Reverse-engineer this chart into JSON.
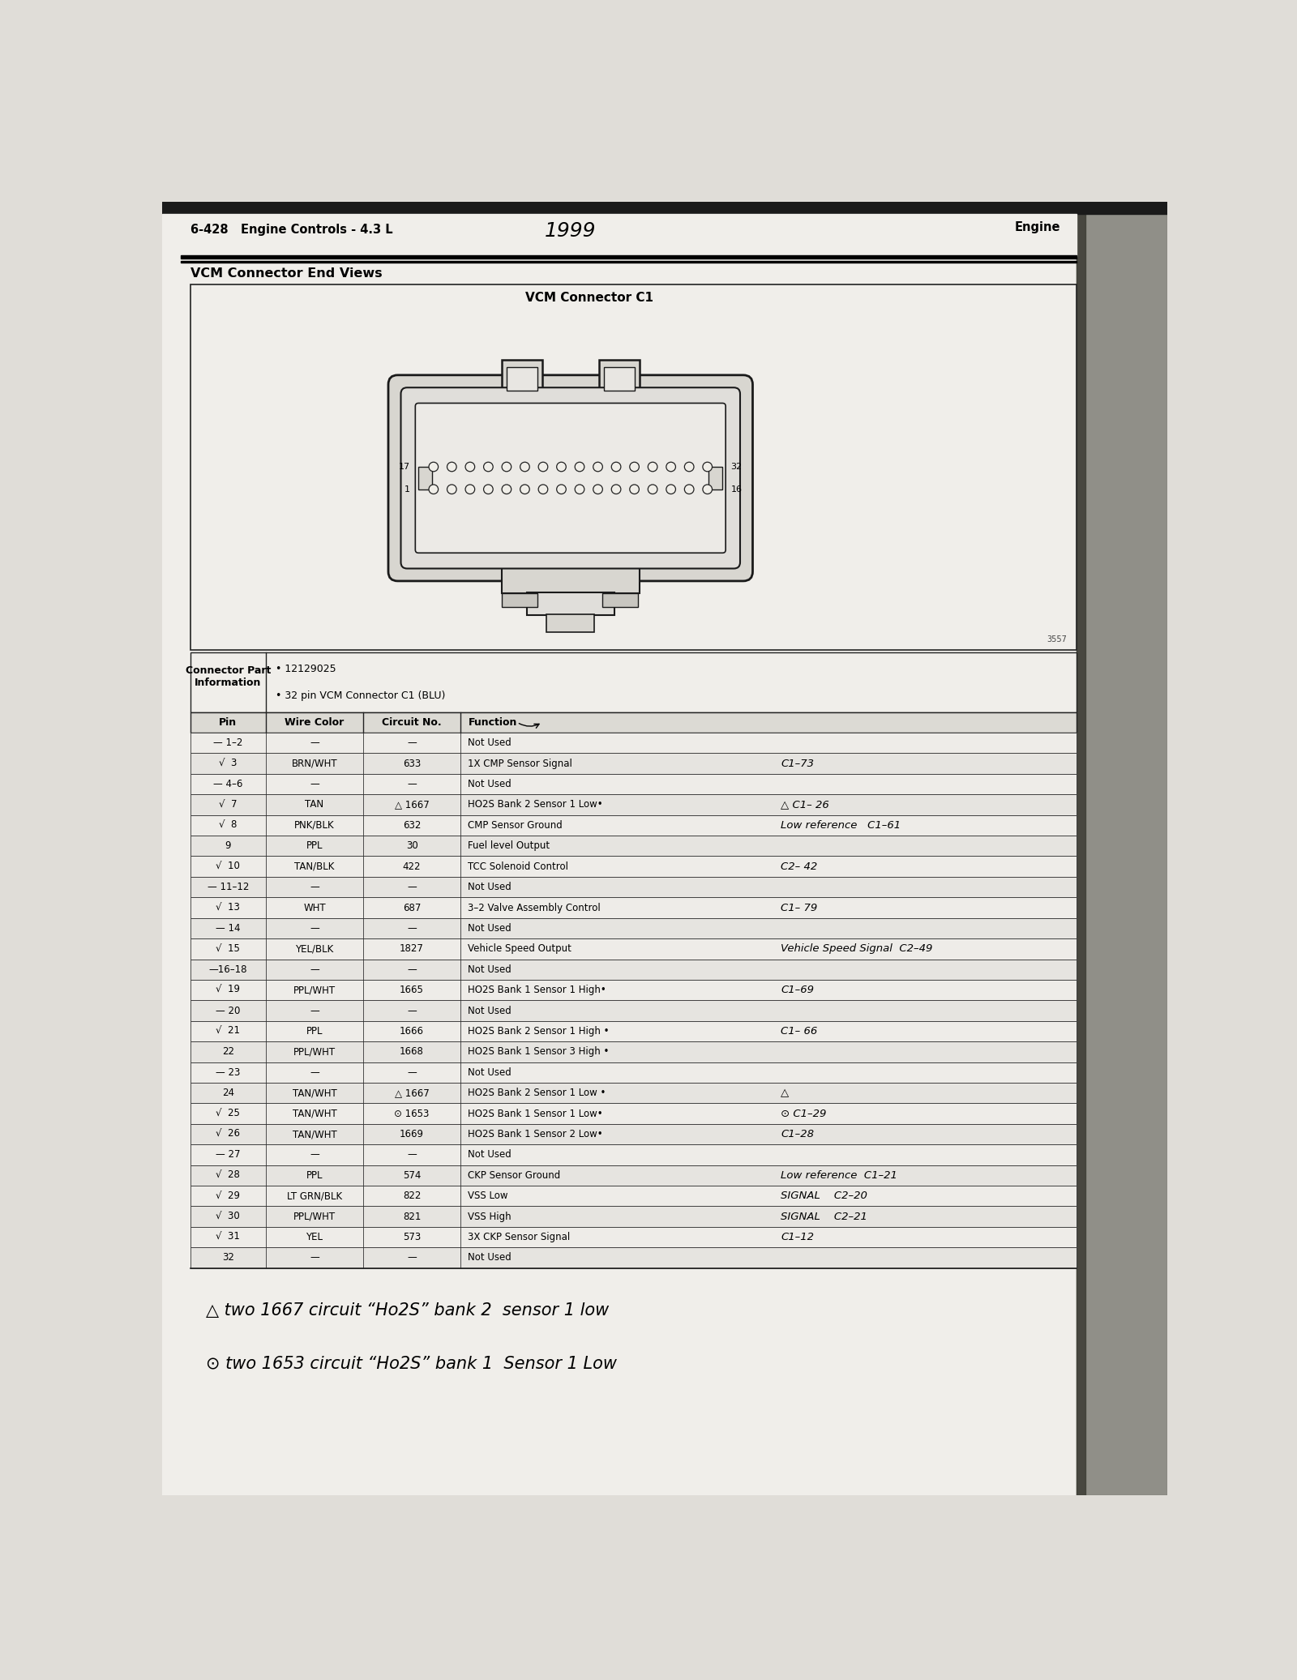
{
  "page_header_left": "6-428   Engine Controls - 4.3 L",
  "page_header_center": "1999",
  "page_header_right": "Engine",
  "section_title": "VCM Connector End Views",
  "connector_title": "VCM Connector C1",
  "part_info_label": "Connector Part\nInformation",
  "part_info_bullets": [
    "• 12129025",
    "• 32 pin VCM Connector C1 (BLU)"
  ],
  "table_headers": [
    "Pin",
    "Wire Color",
    "Circuit No.",
    "Function"
  ],
  "rows": [
    {
      "pin": "— 1–2",
      "wire": "—",
      "circuit": "—",
      "function": "Not Used",
      "handwritten": ""
    },
    {
      "pin": "√  3",
      "wire": "BRN/WHT",
      "circuit": "633",
      "function": "1X CMP Sensor Signal",
      "handwritten": "C1–73"
    },
    {
      "pin": "— 4–6",
      "wire": "—",
      "circuit": "—",
      "function": "Not Used",
      "handwritten": ""
    },
    {
      "pin": "√  7",
      "wire": "TAN",
      "circuit": "△ 1667",
      "function": "HO2S Bank 2 Sensor 1 Low•",
      "handwritten": "△ C1– 26"
    },
    {
      "pin": "√  8",
      "wire": "PNK/BLK",
      "circuit": "632",
      "function": "CMP Sensor Ground",
      "handwritten": "Low reference   C1–61"
    },
    {
      "pin": "9",
      "wire": "PPL",
      "circuit": "30",
      "function": "Fuel level Output",
      "handwritten": ""
    },
    {
      "pin": "√  10",
      "wire": "TAN/BLK",
      "circuit": "422",
      "function": "TCC Solenoid Control",
      "handwritten": "C2– 42"
    },
    {
      "pin": "— 11–12",
      "wire": "—",
      "circuit": "—",
      "function": "Not Used",
      "handwritten": ""
    },
    {
      "pin": "√  13",
      "wire": "WHT",
      "circuit": "687",
      "function": "3–2 Valve Assembly Control",
      "handwritten": "C1– 79"
    },
    {
      "pin": "— 14",
      "wire": "—",
      "circuit": "—",
      "function": "Not Used",
      "handwritten": ""
    },
    {
      "pin": "√  15",
      "wire": "YEL/BLK",
      "circuit": "1827",
      "function": "Vehicle Speed Output",
      "handwritten": "Vehicle Speed Signal  C2–49"
    },
    {
      "pin": "—16–18",
      "wire": "—",
      "circuit": "—",
      "function": "Not Used",
      "handwritten": ""
    },
    {
      "pin": "√  19",
      "wire": "PPL/WHT",
      "circuit": "1665",
      "function": "HO2S Bank 1 Sensor 1 High•",
      "handwritten": "C1–69"
    },
    {
      "pin": "— 20",
      "wire": "—",
      "circuit": "—",
      "function": "Not Used",
      "handwritten": ""
    },
    {
      "pin": "√  21",
      "wire": "PPL",
      "circuit": "1666",
      "function": "HO2S Bank 2 Sensor 1 High •",
      "handwritten": "C1– 66"
    },
    {
      "pin": "22",
      "wire": "PPL/WHT",
      "circuit": "1668",
      "function": "HO2S Bank 1 Sensor 3 High •",
      "handwritten": ""
    },
    {
      "pin": "— 23",
      "wire": "—",
      "circuit": "—",
      "function": "Not Used",
      "handwritten": ""
    },
    {
      "pin": "24",
      "wire": "TAN/WHT",
      "circuit": "△ 1667",
      "function": "HO2S Bank 2 Sensor 1 Low •",
      "handwritten": "△"
    },
    {
      "pin": "√  25",
      "wire": "TAN/WHT",
      "circuit": "⊙ 1653",
      "function": "HO2S Bank 1 Sensor 1 Low•",
      "handwritten": "⊙ C1–29"
    },
    {
      "pin": "√  26",
      "wire": "TAN/WHT",
      "circuit": "1669",
      "function": "HO2S Bank 1 Sensor 2 Low•",
      "handwritten": "C1–28"
    },
    {
      "pin": "— 27",
      "wire": "—",
      "circuit": "—",
      "function": "Not Used",
      "handwritten": ""
    },
    {
      "pin": "√  28",
      "wire": "PPL",
      "circuit": "574",
      "function": "CKP Sensor Ground",
      "handwritten": "Low reference  C1–21"
    },
    {
      "pin": "√  29",
      "wire": "LT GRN/BLK",
      "circuit": "822",
      "function": "VSS Low",
      "handwritten": "SIGNAL    C2–20"
    },
    {
      "pin": "√  30",
      "wire": "PPL/WHT",
      "circuit": "821",
      "function": "VSS High",
      "handwritten": "SIGNAL    C2–21"
    },
    {
      "pin": "√  31",
      "wire": "YEL",
      "circuit": "573",
      "function": "3X CKP Sensor Signal",
      "handwritten": "C1–12"
    },
    {
      "pin": "32",
      "wire": "—",
      "circuit": "—",
      "function": "Not Used",
      "handwritten": ""
    }
  ],
  "footnotes": [
    "△ two 1667 circuit “Ho2S” bank 2  sensor 1 low",
    "⊙ two 1653 circuit “Ho2S” bank 1  Sensor 1 Low"
  ],
  "bg_color": "#e0ddd8",
  "page_color": "#deded8",
  "white_area": "#f0eeea",
  "table_bg_even": "#eeece8",
  "table_bg_odd": "#e6e4e0",
  "right_band_color": "#888880"
}
